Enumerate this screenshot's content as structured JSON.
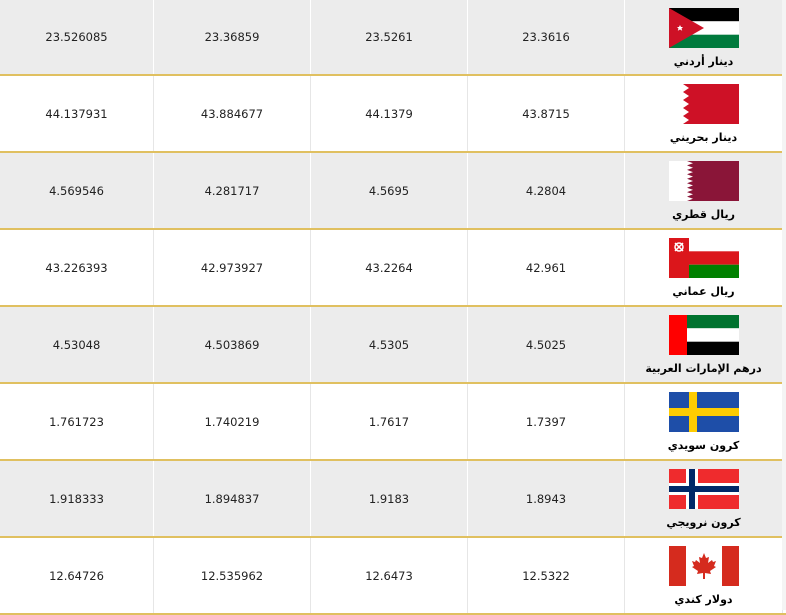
{
  "rows": [
    {
      "flag": "jordan-flag",
      "name": "دينار أردني",
      "v1": "23.526085",
      "v2": "23.36859",
      "v3": "23.5261",
      "v4": "23.3616"
    },
    {
      "flag": "bahrain-flag",
      "name": "دينار بحريني",
      "v1": "44.137931",
      "v2": "43.884677",
      "v3": "44.1379",
      "v4": "43.8715"
    },
    {
      "flag": "qatar-flag",
      "name": "ريال قطري",
      "v1": "4.569546",
      "v2": "4.281717",
      "v3": "4.5695",
      "v4": "4.2804"
    },
    {
      "flag": "oman-flag",
      "name": "ريال عماني",
      "v1": "43.226393",
      "v2": "42.973927",
      "v3": "43.2264",
      "v4": "42.961"
    },
    {
      "flag": "uae-flag",
      "name": "درهم الإمارات العربية",
      "v1": "4.53048",
      "v2": "4.503869",
      "v3": "4.5305",
      "v4": "4.5025"
    },
    {
      "flag": "sweden-flag",
      "name": "كرون سويدي",
      "v1": "1.761723",
      "v2": "1.740219",
      "v3": "1.7617",
      "v4": "1.7397"
    },
    {
      "flag": "norway-flag",
      "name": "كرون نرويجي",
      "v1": "1.918333",
      "v2": "1.894837",
      "v3": "1.9183",
      "v4": "1.8943"
    },
    {
      "flag": "canada-flag",
      "name": "دولار كندي",
      "v1": "12.64726",
      "v2": "12.535962",
      "v3": "12.6473",
      "v4": "12.5322"
    }
  ]
}
